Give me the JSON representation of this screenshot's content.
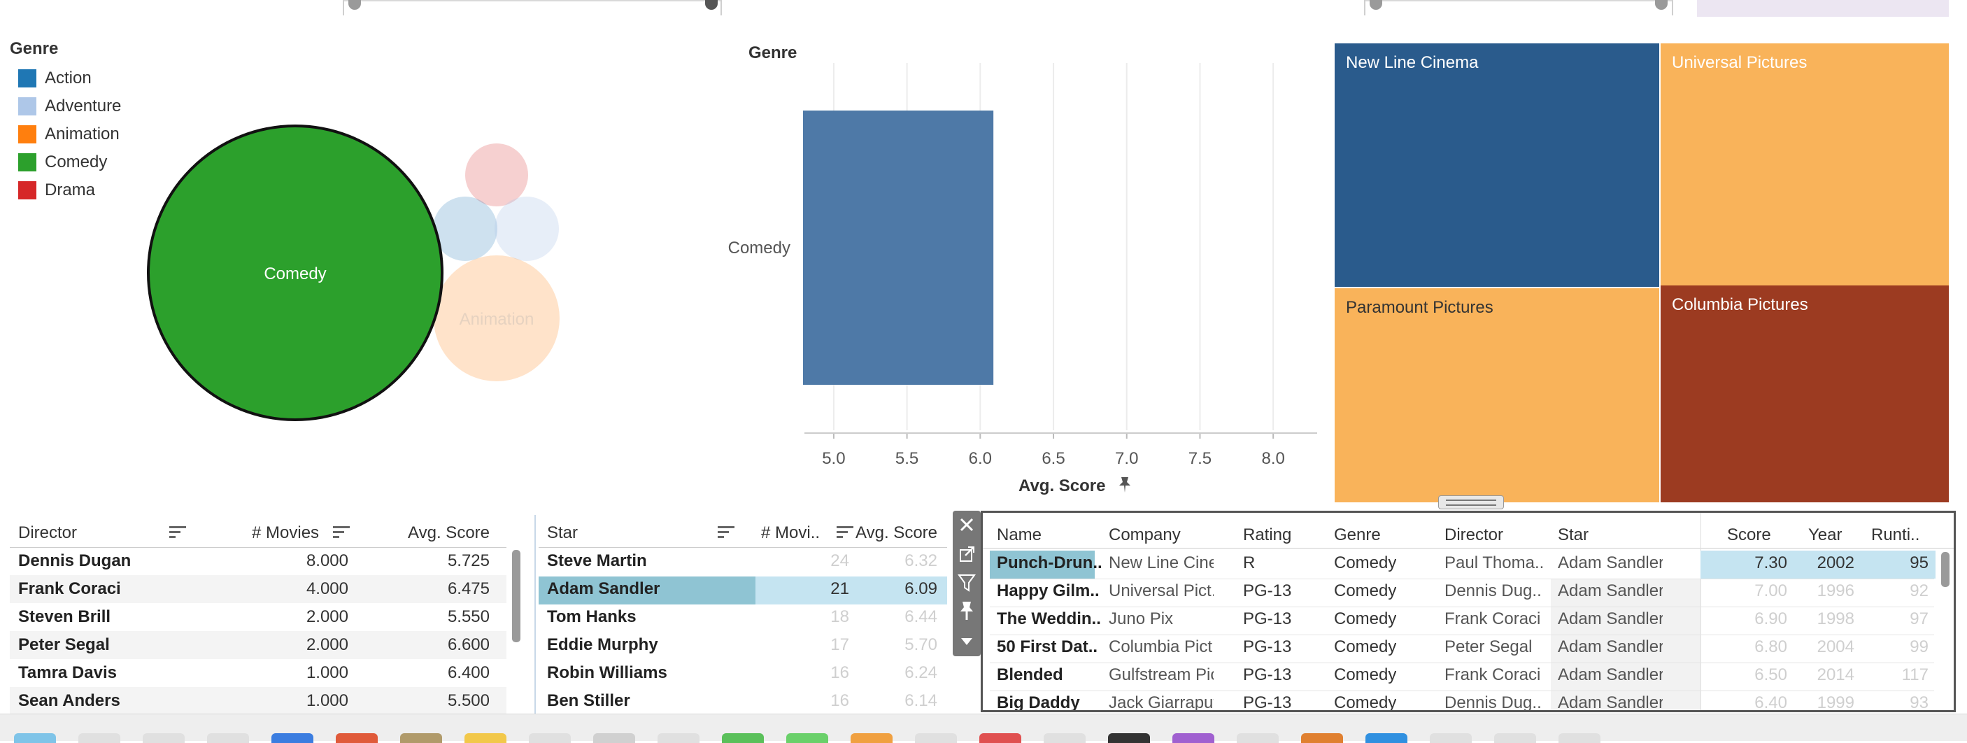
{
  "legend": {
    "title": "Genre",
    "items": [
      {
        "label": "Action",
        "color": "#1f77b4"
      },
      {
        "label": "Adventure",
        "color": "#aec7e8"
      },
      {
        "label": "Animation",
        "color": "#ff7f0e"
      },
      {
        "label": "Comedy",
        "color": "#2ca02c"
      },
      {
        "label": "Drama",
        "color": "#d62728"
      }
    ]
  },
  "bubbles": {
    "main_label": "Comedy",
    "faded_label": "Animation"
  },
  "bar_chart": {
    "genre_header": "Genre",
    "axis_title": "Avg. Score",
    "chart_data": {
      "type": "bar",
      "categories": [
        "Comedy"
      ],
      "values": [
        6.09
      ],
      "xlabel": "Avg. Score",
      "ylabel": "Genre",
      "xlim": [
        4.8,
        8.3
      ],
      "ticks": [
        "5.0",
        "5.5",
        "6.0",
        "6.5",
        "7.0",
        "7.5",
        "8.0"
      ],
      "tick_values": [
        5.0,
        5.5,
        6.0,
        6.5,
        7.0,
        7.5,
        8.0
      ],
      "grid": true,
      "orientation": "horizontal"
    }
  },
  "treemap": {
    "cells": [
      {
        "label": "New Line Cinema",
        "color": "#2a5b8c"
      },
      {
        "label": "Universal Pictures",
        "color": "#f9b35a"
      },
      {
        "label": "Paramount Pictures",
        "color": "#f9b35a"
      },
      {
        "label": "Columbia Pictures",
        "color": "#9c3b21"
      }
    ]
  },
  "directors_table": {
    "headers": [
      "Director",
      "# Movies",
      "Avg. Score"
    ],
    "rows": [
      [
        "Dennis Dugan",
        "8.000",
        "5.725"
      ],
      [
        "Frank Coraci",
        "4.000",
        "6.475"
      ],
      [
        "Steven Brill",
        "2.000",
        "5.550"
      ],
      [
        "Peter Segal",
        "2.000",
        "6.600"
      ],
      [
        "Tamra Davis",
        "1.000",
        "6.400"
      ],
      [
        "Sean Anders",
        "1.000",
        "5.500"
      ]
    ]
  },
  "stars_table": {
    "headers": [
      "Star",
      "# Movi..",
      "Avg. Score"
    ],
    "rows": [
      [
        "Steve Martin",
        "24",
        "6.32"
      ],
      [
        "Adam Sandler",
        "21",
        "6.09"
      ],
      [
        "Tom Hanks",
        "18",
        "6.44"
      ],
      [
        "Eddie Murphy",
        "17",
        "5.70"
      ],
      [
        "Robin Williams",
        "16",
        "6.24"
      ],
      [
        "Ben Stiller",
        "16",
        "6.14"
      ]
    ]
  },
  "movies_table": {
    "headers": [
      "Name",
      "Company",
      "Rating",
      "Genre",
      "Director",
      "Star",
      "Score",
      "Year",
      "Runti.."
    ],
    "rows": [
      [
        "Punch-Drun..",
        "New Line Cine..",
        "R",
        "Comedy",
        "Paul Thoma..",
        "Adam Sandler",
        "7.30",
        "2002",
        "95"
      ],
      [
        "Happy Gilm..",
        "Universal Pict..",
        "PG-13",
        "Comedy",
        "Dennis Dug..",
        "Adam Sandler",
        "7.00",
        "1996",
        "92"
      ],
      [
        "The Weddin..",
        "Juno Pix",
        "PG-13",
        "Comedy",
        "Frank Coraci",
        "Adam Sandler",
        "6.90",
        "1998",
        "97"
      ],
      [
        "50 First Dat..",
        "Columbia Pict..",
        "PG-13",
        "Comedy",
        "Peter Segal",
        "Adam Sandler",
        "6.80",
        "2004",
        "99"
      ],
      [
        "Blended",
        "Gulfstream Pic..",
        "PG-13",
        "Comedy",
        "Frank Coraci",
        "Adam Sandler",
        "6.50",
        "2014",
        "117"
      ],
      [
        "Big Daddy",
        "Jack Giarraput..",
        "PG-13",
        "Comedy",
        "Dennis Dug..",
        "Adam Sandler",
        "6.40",
        "1999",
        "93"
      ]
    ]
  },
  "toolbar": {
    "close_icon": "close-icon",
    "open_icon": "open-external-icon",
    "filter_icon": "filter-icon",
    "pin_icon": "pin-icon",
    "more_icon": "dropdown-arrow-icon"
  }
}
